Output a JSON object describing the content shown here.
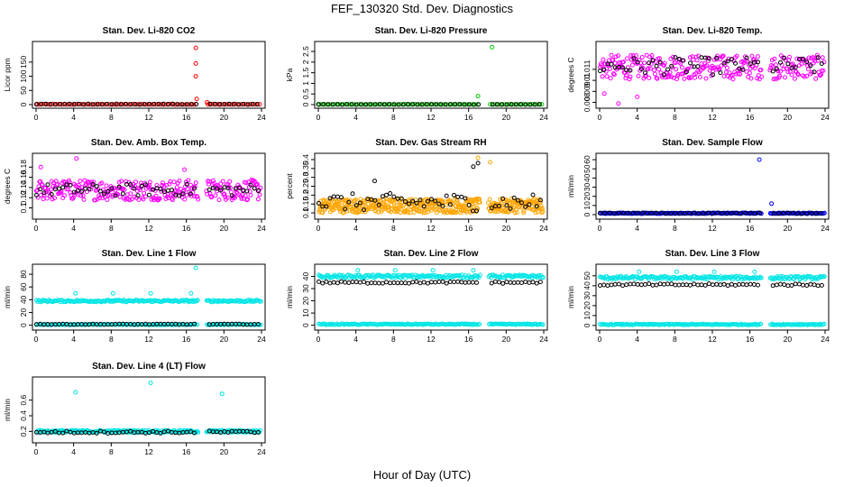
{
  "figure": {
    "title": "FEF_130320  Std. Dev. Diagnostics",
    "xlabel": "Hour of Day (UTC)"
  },
  "colors": {
    "black": "#000000",
    "red": "#ff0000",
    "green": "#00cc00",
    "magenta": "#ff00ff",
    "orange": "#ffa500",
    "blue": "#0000ff",
    "cyan": "#00e5e5"
  },
  "chart_data": [
    {
      "type": "scatter",
      "title": "Stan. Dev. Li-820 CO2",
      "xlabel": "",
      "ylabel": "Licor ppm",
      "xlim": [
        0,
        24
      ],
      "ylim": [
        0,
        210
      ],
      "xticks": [
        0,
        4,
        8,
        12,
        16,
        20,
        24
      ],
      "yticks": [
        0,
        50,
        100,
        150
      ],
      "series": [
        {
          "name": "minute",
          "color": "red",
          "base": 1,
          "noise": 1,
          "step": 0.25,
          "outliers": [
            [
              0.1,
              2
            ],
            [
              17.0,
              200
            ],
            [
              17.0,
              145
            ],
            [
              17.0,
              100
            ],
            [
              17.1,
              20
            ],
            [
              18.2,
              8
            ],
            [
              18.5,
              3
            ]
          ]
        },
        {
          "name": "hourly",
          "color": "black",
          "base": 1.5,
          "noise": 0.8,
          "step": 0.5,
          "outliers": []
        }
      ]
    },
    {
      "type": "scatter",
      "title": "Stan. Dev. Li-820 Pressure",
      "xlabel": "",
      "ylabel": "kPa",
      "xlim": [
        0,
        24
      ],
      "ylim": [
        0,
        2.8
      ],
      "xticks": [
        0,
        4,
        8,
        12,
        16,
        20,
        24
      ],
      "yticks": [
        0.0,
        0.5,
        1.0,
        1.5,
        2.0,
        2.5
      ],
      "series": [
        {
          "name": "minute",
          "color": "green",
          "base": 0.01,
          "noise": 0.01,
          "step": 0.25,
          "outliers": [
            [
              0.0,
              0.02
            ],
            [
              17.0,
              0.4
            ],
            [
              18.5,
              2.7
            ]
          ]
        },
        {
          "name": "hourly",
          "color": "black",
          "base": 0.01,
          "noise": 0.01,
          "step": 0.5,
          "outliers": []
        }
      ]
    },
    {
      "type": "scatter",
      "title": "Stan. Dev. Li-820 Temp.",
      "xlabel": "",
      "ylabel": "degrees C",
      "xlim": [
        0,
        24
      ],
      "ylim": [
        0.0078,
        0.0132
      ],
      "xticks": [
        0,
        4,
        8,
        12,
        16,
        20,
        24
      ],
      "yticks": [
        0.008,
        0.009,
        0.01,
        0.011
      ],
      "series": [
        {
          "name": "minute",
          "color": "magenta",
          "base": 0.0112,
          "noise": 0.0011,
          "step": 0.08,
          "outliers": [
            [
              2.0,
              0.0079
            ],
            [
              4.0,
              0.0085
            ],
            [
              0.5,
              0.0088
            ]
          ]
        },
        {
          "name": "hourly",
          "color": "black",
          "base": 0.0113,
          "noise": 0.0008,
          "step": 0.4,
          "outliers": []
        }
      ]
    },
    {
      "type": "scatter",
      "title": "Stan. Dev. Amb. Box Temp.",
      "xlabel": "",
      "ylabel": "degrees C",
      "xlim": [
        0,
        24
      ],
      "ylim": [
        0.085,
        0.2
      ],
      "xticks": [
        0,
        4,
        8,
        12,
        16,
        20,
        24
      ],
      "yticks": [
        0.1,
        0.12,
        0.14,
        0.16,
        0.18
      ],
      "series": [
        {
          "name": "minute",
          "color": "magenta",
          "base": 0.135,
          "noise": 0.02,
          "step": 0.08,
          "outliers": [
            [
              4.3,
              0.197
            ],
            [
              0.5,
              0.18
            ],
            [
              15.8,
              0.175
            ]
          ]
        },
        {
          "name": "hourly",
          "color": "black",
          "base": 0.135,
          "noise": 0.012,
          "step": 0.4,
          "outliers": []
        }
      ]
    },
    {
      "type": "scatter",
      "title": "Stan. Dev. Gas Stream RH",
      "xlabel": "",
      "ylabel": "percent",
      "xlim": [
        0,
        24
      ],
      "ylim": [
        0.085,
        0.415
      ],
      "xticks": [
        0,
        4,
        8,
        12,
        16,
        20,
        24
      ],
      "yticks": [
        0.1,
        0.15,
        0.2,
        0.25,
        0.3,
        0.35,
        0.4
      ],
      "series": [
        {
          "name": "minute",
          "color": "orange",
          "base": 0.14,
          "noise": 0.04,
          "step": 0.05,
          "outliers": [
            [
              17.0,
              0.41
            ],
            [
              18.3,
              0.385
            ]
          ]
        },
        {
          "name": "hourly",
          "color": "black",
          "base": 0.16,
          "noise": 0.05,
          "step": 0.4,
          "outliers": [
            [
              16.5,
              0.36
            ],
            [
              17.0,
              0.38
            ],
            [
              6.0,
              0.28
            ]
          ]
        }
      ]
    },
    {
      "type": "scatter",
      "title": "Stan. Dev. Sample Flow",
      "xlabel": "",
      "ylabel": "ml/min",
      "xlim": [
        0,
        24
      ],
      "ylim": [
        -1,
        63
      ],
      "xticks": [
        0,
        4,
        8,
        12,
        16,
        20,
        24
      ],
      "yticks": [
        0,
        10,
        20,
        30,
        40,
        50,
        60
      ],
      "series": [
        {
          "name": "minute",
          "color": "blue",
          "base": 1.5,
          "noise": 0.5,
          "step": 0.12,
          "outliers": [
            [
              17.0,
              60
            ],
            [
              18.3,
              12
            ]
          ]
        },
        {
          "name": "hourly",
          "color": "black",
          "base": 1.5,
          "noise": 0.4,
          "step": 0.5,
          "outliers": []
        }
      ]
    },
    {
      "type": "scatter",
      "title": "Stan. Dev. Line 1 Flow",
      "xlabel": "",
      "ylabel": "ml/min",
      "xlim": [
        0,
        24
      ],
      "ylim": [
        -2,
        90
      ],
      "xticks": [
        0,
        4,
        8,
        12,
        16,
        20,
        24
      ],
      "yticks": [
        0,
        20,
        40,
        60,
        80
      ],
      "series": [
        {
          "name": "minute-a",
          "color": "cyan",
          "base": 38,
          "noise": 1.5,
          "step": 0.12,
          "outliers": [
            [
              4.2,
              50
            ],
            [
              8.2,
              50
            ],
            [
              12.2,
              50
            ],
            [
              16.5,
              50
            ],
            [
              17.0,
              90
            ]
          ]
        },
        {
          "name": "minute-b",
          "color": "cyan",
          "base": 1,
          "noise": 0.5,
          "step": 0.15,
          "outliers": []
        },
        {
          "name": "hourly",
          "color": "black",
          "base": 1.5,
          "noise": 0.5,
          "step": 0.4,
          "outliers": []
        }
      ]
    },
    {
      "type": "scatter",
      "title": "Stan. Dev. Line 2 Flow",
      "xlabel": "",
      "ylabel": "ml/min",
      "xlim": [
        0,
        24
      ],
      "ylim": [
        -1,
        47
      ],
      "xticks": [
        0,
        4,
        8,
        12,
        16,
        20,
        24
      ],
      "yticks": [
        0,
        10,
        20,
        30,
        40
      ],
      "series": [
        {
          "name": "minute-a",
          "color": "cyan",
          "base": 40,
          "noise": 1.2,
          "step": 0.12,
          "outliers": [
            [
              4.2,
              45
            ],
            [
              8.2,
              45
            ],
            [
              12.2,
              45
            ],
            [
              16.5,
              45
            ]
          ]
        },
        {
          "name": "minute-b",
          "color": "cyan",
          "base": 0.8,
          "noise": 0.4,
          "step": 0.15,
          "outliers": []
        },
        {
          "name": "hourly",
          "color": "black",
          "base": 35,
          "noise": 0.8,
          "step": 0.4,
          "outliers": []
        }
      ]
    },
    {
      "type": "scatter",
      "title": "Stan. Dev. Line 3 Flow",
      "xlabel": "",
      "ylabel": "ml/min",
      "xlim": [
        0,
        24
      ],
      "ylim": [
        -1,
        58
      ],
      "xticks": [
        0,
        4,
        8,
        12,
        16,
        20,
        24
      ],
      "yticks": [
        0,
        10,
        20,
        30,
        40,
        50
      ],
      "series": [
        {
          "name": "minute-a",
          "color": "cyan",
          "base": 48,
          "noise": 1.5,
          "step": 0.12,
          "outliers": [
            [
              4.2,
              54
            ],
            [
              8.2,
              54
            ],
            [
              12.2,
              54
            ],
            [
              16.5,
              54
            ]
          ]
        },
        {
          "name": "minute-b",
          "color": "cyan",
          "base": 1,
          "noise": 0.5,
          "step": 0.15,
          "outliers": []
        },
        {
          "name": "hourly",
          "color": "black",
          "base": 41,
          "noise": 1,
          "step": 0.4,
          "outliers": []
        }
      ]
    },
    {
      "type": "scatter",
      "title": "Stan. Dev. Line 4 (LT) Flow",
      "xlabel": "",
      "ylabel": "ml/min",
      "xlim": [
        0,
        24
      ],
      "ylim": [
        0.1,
        0.85
      ],
      "xticks": [
        0,
        4,
        8,
        12,
        16,
        20,
        24
      ],
      "yticks": [
        0.2,
        0.4,
        0.6
      ],
      "series": [
        {
          "name": "minute",
          "color": "cyan",
          "base": 0.2,
          "noise": 0.015,
          "step": 0.1,
          "outliers": [
            [
              4.2,
              0.7
            ],
            [
              12.2,
              0.82
            ],
            [
              19.8,
              0.68
            ]
          ]
        },
        {
          "name": "hourly",
          "color": "black",
          "base": 0.19,
          "noise": 0.015,
          "step": 0.4,
          "outliers": []
        }
      ]
    }
  ]
}
